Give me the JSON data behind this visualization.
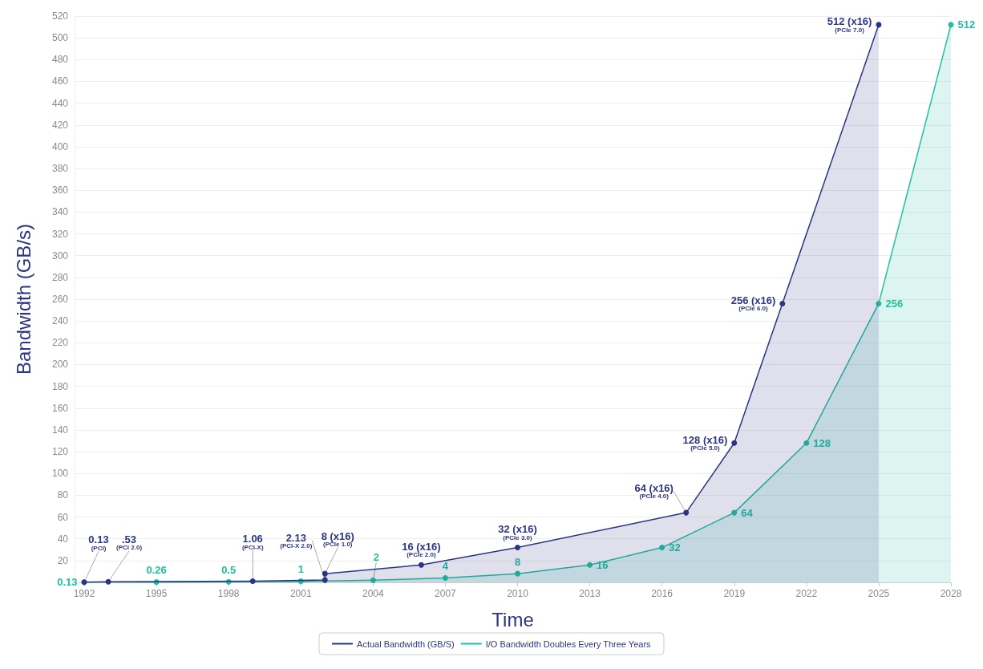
{
  "chart_data": {
    "type": "area",
    "xlabel": "Time",
    "ylabel": "Bandwidth (GB/s)",
    "xlim": [
      1991.6,
      2028
    ],
    "xticks": [
      1992,
      1995,
      1998,
      2001,
      2004,
      2007,
      2010,
      2013,
      2016,
      2019,
      2022,
      2025,
      2028
    ],
    "ylim": [
      0,
      520
    ],
    "yticks": [
      20,
      40,
      60,
      80,
      100,
      120,
      140,
      160,
      180,
      200,
      220,
      240,
      260,
      280,
      300,
      320,
      340,
      360,
      380,
      400,
      420,
      440,
      460,
      480,
      500,
      520
    ],
    "grid": "y",
    "legend": "bottom",
    "marker": "circle",
    "line_style": "solid",
    "series": [
      {
        "name": "Actual Bandwidth (GB/S)",
        "color": "#2b3585",
        "x": [
          1992,
          1993,
          1999,
          2002,
          2002,
          2006,
          2010,
          2017,
          2019,
          2021,
          2025
        ],
        "values": [
          0.13,
          0.53,
          1.06,
          2.13,
          8,
          16,
          32,
          64,
          128,
          256,
          512
        ],
        "value_labels": [
          "0.13",
          ".53",
          "1.06",
          "2.13",
          "8 (x16)",
          "16 (x16)",
          "32 (x16)",
          "64 (x16)",
          "128 (x16)",
          "256 (x16)",
          "512 (x16)"
        ]
      },
      {
        "name": "I/O Bandwidth Doubles Every Three Years",
        "color": "#1fbf9f",
        "x": [
          1992,
          1995,
          1998,
          2001,
          2004,
          2007,
          2010,
          2013,
          2016,
          2019,
          2022,
          2025,
          2028
        ],
        "values": [
          0.13,
          0.26,
          0.5,
          1,
          2,
          4,
          8,
          16,
          32,
          64,
          128,
          256,
          512
        ],
        "value_labels": [
          "0.13",
          "0.26",
          "0.5",
          "1",
          "2",
          "4",
          "8",
          "16",
          "32",
          "64",
          "128",
          "256",
          "512"
        ]
      }
    ],
    "annotations": [
      {
        "text": "(PCI)",
        "x": 1992,
        "y": 0.13
      },
      {
        "text": "(PCI 2.0)",
        "x": 1993,
        "y": 0.53
      },
      {
        "text": "(PCI-X)",
        "x": 1999,
        "y": 1.06
      },
      {
        "text": "(PCI-X 2.0)",
        "x": 2002,
        "y": 2.13
      },
      {
        "text": "(PCIe 1.0)",
        "x": 2002,
        "y": 8
      },
      {
        "text": "(PCIe 2.0)",
        "x": 2006,
        "y": 16
      },
      {
        "text": "(PCIe 3.0)",
        "x": 2010,
        "y": 32
      },
      {
        "text": "(PCIe 4.0)",
        "x": 2017,
        "y": 64
      },
      {
        "text": "(PCIe 5.0)",
        "x": 2019,
        "y": 128
      },
      {
        "text": "(PCIe 6.0)",
        "x": 2021,
        "y": 256
      },
      {
        "text": "(PCIe 7.0)",
        "x": 2025,
        "y": 512
      }
    ]
  }
}
